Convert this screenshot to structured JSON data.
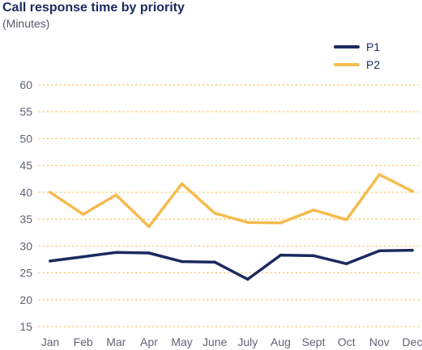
{
  "chart_data": {
    "type": "line",
    "title": "Call response time by priority",
    "subtitle": "(Minutes)",
    "xlabel": "",
    "ylabel": "",
    "categories": [
      "Jan",
      "Feb",
      "Mar",
      "Apr",
      "May",
      "June",
      "July",
      "Aug",
      "Sept",
      "Oct",
      "Nov",
      "Dec"
    ],
    "ylim": [
      15,
      60
    ],
    "yticks": [
      15,
      20,
      25,
      30,
      35,
      40,
      45,
      50,
      55,
      60
    ],
    "grid": "horizontal-dotted",
    "legend_position": "top-right",
    "series": [
      {
        "name": "P1",
        "color": "#1b2a5e",
        "values": [
          27.2,
          28.0,
          28.8,
          28.7,
          27.1,
          27.0,
          23.8,
          28.3,
          28.2,
          26.7,
          29.1,
          29.2
        ]
      },
      {
        "name": "P2",
        "color": "#f5bb4e",
        "values": [
          40.0,
          35.9,
          39.5,
          33.6,
          41.6,
          36.1,
          34.4,
          34.3,
          36.7,
          34.9,
          43.3,
          40.2
        ]
      }
    ],
    "grid_color": "#f3c45a"
  }
}
